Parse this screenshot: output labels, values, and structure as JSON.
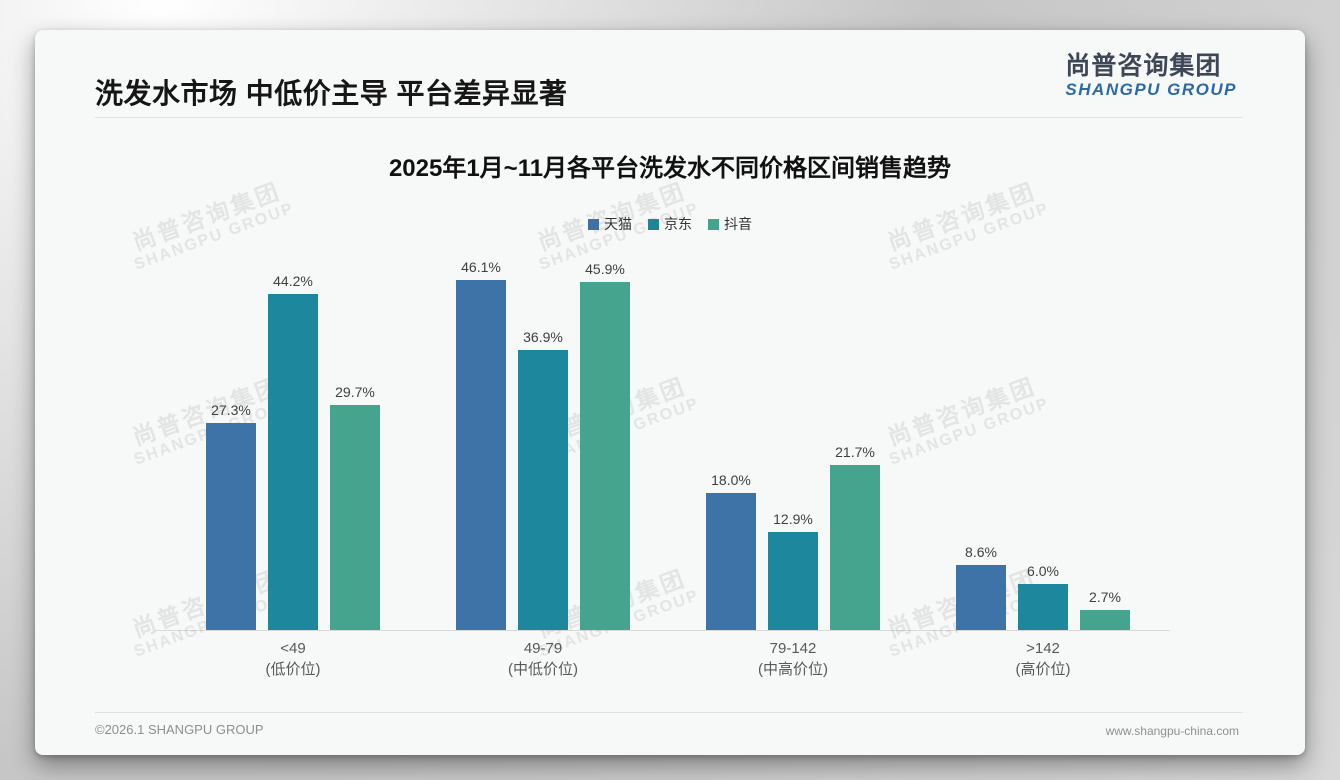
{
  "page": {
    "title": "洗发水市场 中低价主导 平台差异显著",
    "logo": {
      "cn": "尚普咨询集团",
      "en": "SHANGPU GROUP"
    },
    "watermark": {
      "cn": "尚普咨询集团",
      "en": "SHANGPU GROUP"
    },
    "footer": {
      "left": "©2026.1 SHANGPU GROUP",
      "right": "www.shangpu-china.com"
    }
  },
  "chart_data": {
    "type": "bar",
    "title": "2025年1月~11月各平台洗发水不同价格区间销售趋势",
    "categories": [
      {
        "range": "<49",
        "tier": "(低价位)"
      },
      {
        "range": "49-79",
        "tier": "(中低价位)"
      },
      {
        "range": "79-142",
        "tier": "(中高价位)"
      },
      {
        "range": ">142",
        "tier": "(高价位)"
      }
    ],
    "series": [
      {
        "name": "天猫",
        "color": "#3e73a8",
        "values": [
          27.3,
          46.1,
          18.0,
          8.6
        ]
      },
      {
        "name": "京东",
        "color": "#1d879e",
        "values": [
          44.2,
          36.9,
          12.9,
          6.0
        ]
      },
      {
        "name": "抖音",
        "color": "#44a48e",
        "values": [
          29.7,
          45.9,
          21.7,
          2.7
        ]
      }
    ],
    "value_suffix": "%",
    "ylim": [
      0,
      50
    ],
    "grid": false,
    "legend_position": "top",
    "xlabel": "",
    "ylabel": ""
  }
}
